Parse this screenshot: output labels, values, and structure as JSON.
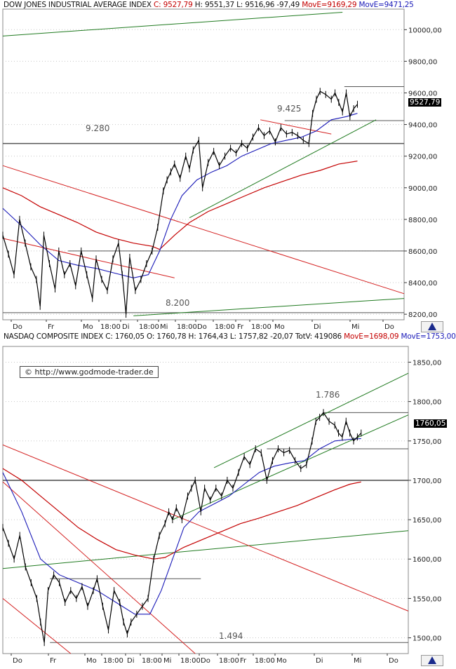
{
  "colors": {
    "price": "#000000",
    "ma_short": "#1a1ab8",
    "ma_long": "#c40000",
    "trend_green": "#1f7a1f",
    "trend_red": "#d42020",
    "level": "#555555",
    "grid": "#c8c8c8"
  },
  "nav_icon": "chart-navigator-icon",
  "chart_data": [
    {
      "type": "line",
      "header": {
        "name": "DOW JONES INDUSTRIAL AVERAGE INDEX",
        "close": "C: 9527,79",
        "high": "H: 9551,37",
        "low": "L: 9516,96",
        "change": "-97,49",
        "ma_long": "MovE=9169,29",
        "ma_short": "MovE=9471,25"
      },
      "last_value_label": "9527,79",
      "annotations": [
        "9.425",
        "9.280",
        "8.200"
      ],
      "x_tick_labels": [
        "Do",
        "Fr",
        "Mo",
        "18:00",
        "Di",
        "18:00",
        "Mi",
        "18:00",
        "Do",
        "18:00",
        "Fr",
        "18:00",
        "Mo",
        "Di",
        "Mi",
        "Do"
      ],
      "y_tick_labels": [
        "10000,00",
        "9800,00",
        "9600,00",
        "9400,00",
        "9200,00",
        "9000,00",
        "8800,00",
        "8600,00",
        "8400,00",
        "8200,00"
      ],
      "ylim": [
        8165,
        10130
      ],
      "y_ticks": [
        10000,
        9800,
        9600,
        9400,
        9200,
        9000,
        8800,
        8600,
        8400,
        8200
      ],
      "grid": "horizontal dotted",
      "levels": [
        9280,
        8600,
        8210,
        9425,
        9640
      ],
      "points": [
        [
          0,
          8700
        ],
        [
          3,
          8580
        ],
        [
          6,
          8450
        ],
        [
          9,
          8800
        ],
        [
          12,
          8650
        ],
        [
          15,
          8500
        ],
        [
          18,
          8420
        ],
        [
          20,
          8250
        ],
        [
          22,
          8700
        ],
        [
          25,
          8520
        ],
        [
          28,
          8360
        ],
        [
          30,
          8600
        ],
        [
          33,
          8450
        ],
        [
          36,
          8520
        ],
        [
          39,
          8380
        ],
        [
          42,
          8600
        ],
        [
          45,
          8450
        ],
        [
          48,
          8300
        ],
        [
          50,
          8550
        ],
        [
          53,
          8420
        ],
        [
          56,
          8350
        ],
        [
          59,
          8550
        ],
        [
          62,
          8650
        ],
        [
          64,
          8450
        ],
        [
          66,
          8200
        ],
        [
          68,
          8560
        ],
        [
          71,
          8350
        ],
        [
          74,
          8420
        ],
        [
          77,
          8520
        ],
        [
          80,
          8600
        ],
        [
          83,
          8750
        ],
        [
          86,
          8980
        ],
        [
          88,
          9050
        ],
        [
          90,
          9100
        ],
        [
          92,
          9150
        ],
        [
          95,
          9060
        ],
        [
          98,
          9200
        ],
        [
          100,
          9120
        ],
        [
          102,
          9240
        ],
        [
          105,
          9300
        ],
        [
          107,
          9000
        ],
        [
          110,
          9160
        ],
        [
          113,
          9230
        ],
        [
          116,
          9140
        ],
        [
          119,
          9200
        ],
        [
          122,
          9250
        ],
        [
          125,
          9220
        ],
        [
          128,
          9280
        ],
        [
          131,
          9250
        ],
        [
          134,
          9320
        ],
        [
          137,
          9380
        ],
        [
          140,
          9330
        ],
        [
          143,
          9360
        ],
        [
          146,
          9290
        ],
        [
          149,
          9380
        ],
        [
          152,
          9340
        ],
        [
          155,
          9350
        ],
        [
          158,
          9330
        ],
        [
          161,
          9300
        ],
        [
          164,
          9280
        ],
        [
          166,
          9470
        ],
        [
          168,
          9560
        ],
        [
          170,
          9610
        ],
        [
          173,
          9590
        ],
        [
          176,
          9560
        ],
        [
          178,
          9600
        ],
        [
          180,
          9540
        ],
        [
          182,
          9480
        ],
        [
          184,
          9600
        ],
        [
          186,
          9450
        ],
        [
          188,
          9500
        ],
        [
          190,
          9528
        ]
      ],
      "ma_short_points": [
        [
          0,
          8870
        ],
        [
          10,
          8760
        ],
        [
          20,
          8640
        ],
        [
          30,
          8540
        ],
        [
          40,
          8510
        ],
        [
          50,
          8490
        ],
        [
          60,
          8460
        ],
        [
          70,
          8430
        ],
        [
          78,
          8450
        ],
        [
          84,
          8600
        ],
        [
          90,
          8800
        ],
        [
          96,
          8950
        ],
        [
          104,
          9050
        ],
        [
          112,
          9100
        ],
        [
          120,
          9140
        ],
        [
          128,
          9200
        ],
        [
          136,
          9240
        ],
        [
          144,
          9280
        ],
        [
          152,
          9300
        ],
        [
          160,
          9320
        ],
        [
          168,
          9360
        ],
        [
          176,
          9430
        ],
        [
          184,
          9450
        ],
        [
          190,
          9471
        ]
      ],
      "ma_long_points": [
        [
          0,
          9000
        ],
        [
          10,
          8950
        ],
        [
          20,
          8880
        ],
        [
          30,
          8830
        ],
        [
          40,
          8780
        ],
        [
          50,
          8720
        ],
        [
          60,
          8680
        ],
        [
          70,
          8650
        ],
        [
          80,
          8630
        ],
        [
          84,
          8610
        ],
        [
          92,
          8700
        ],
        [
          100,
          8780
        ],
        [
          110,
          8850
        ],
        [
          120,
          8900
        ],
        [
          130,
          8950
        ],
        [
          140,
          9000
        ],
        [
          150,
          9040
        ],
        [
          160,
          9080
        ],
        [
          170,
          9110
        ],
        [
          180,
          9150
        ],
        [
          190,
          9169
        ]
      ],
      "trend_lines": [
        {
          "color": "green",
          "from": [
            0,
            9960
          ],
          "to": [
            182,
            10110
          ]
        },
        {
          "color": "green",
          "from": [
            100,
            8810
          ],
          "to": [
            200,
            9430
          ]
        },
        {
          "color": "green",
          "from": [
            70,
            8190
          ],
          "to": [
            215,
            8300
          ]
        },
        {
          "color": "red",
          "from": [
            0,
            9140
          ],
          "to": [
            215,
            8330
          ]
        },
        {
          "color": "red",
          "from": [
            0,
            8680
          ],
          "to": [
            92,
            8430
          ]
        },
        {
          "color": "red",
          "from": [
            138,
            9430
          ],
          "to": [
            176,
            9340
          ]
        }
      ],
      "series": [
        {
          "name": "DOW JONES INDUSTRIAL AVERAGE INDEX"
        },
        {
          "name": "MovE=9169,29"
        },
        {
          "name": "MovE=9471,25"
        }
      ]
    },
    {
      "type": "line",
      "header": {
        "name": "NASDAQ COMPOSITE INDEX",
        "close": "C: 1760,05",
        "open": "O: 1760,78",
        "high": "H: 1764,43",
        "low": "L: 1757,82",
        "change": "-20,07",
        "totv": "TotV: 419086",
        "ma_long": "MovE=1698,09",
        "ma_short": "MovE=1753,00"
      },
      "copyright": "© http://www.godmode-trader.de",
      "last_value_label": "1760,05",
      "annotations": [
        "1.786",
        "1.494"
      ],
      "x_tick_labels": [
        "Do",
        "Fr",
        "Mo",
        "18:00",
        "Di",
        "18:00",
        "Mi",
        "18:00",
        "Do",
        "18:00",
        "Fr",
        "18:00",
        "Mo",
        "Di",
        "Mi",
        "Do"
      ],
      "y_tick_labels": [
        "1850,00",
        "1800,00",
        "1750,00",
        "1700,00",
        "1650,00",
        "1600,00",
        "1550,00",
        "1500,00"
      ],
      "ylim": [
        1480,
        1870
      ],
      "y_ticks": [
        1850,
        1800,
        1750,
        1700,
        1650,
        1600,
        1550,
        1500
      ],
      "grid": "horizontal dotted",
      "levels": [
        1700,
        1740,
        1786,
        1575,
        1494
      ],
      "points": [
        [
          0,
          1640
        ],
        [
          3,
          1620
        ],
        [
          6,
          1600
        ],
        [
          9,
          1630
        ],
        [
          12,
          1590
        ],
        [
          15,
          1570
        ],
        [
          18,
          1550
        ],
        [
          20,
          1520
        ],
        [
          22,
          1494
        ],
        [
          24,
          1560
        ],
        [
          27,
          1580
        ],
        [
          30,
          1570
        ],
        [
          33,
          1545
        ],
        [
          36,
          1560
        ],
        [
          39,
          1550
        ],
        [
          42,
          1565
        ],
        [
          45,
          1540
        ],
        [
          48,
          1560
        ],
        [
          50,
          1575
        ],
        [
          53,
          1540
        ],
        [
          56,
          1510
        ],
        [
          59,
          1560
        ],
        [
          62,
          1545
        ],
        [
          64,
          1520
        ],
        [
          66,
          1505
        ],
        [
          68,
          1520
        ],
        [
          71,
          1530
        ],
        [
          74,
          1540
        ],
        [
          77,
          1550
        ],
        [
          80,
          1600
        ],
        [
          83,
          1630
        ],
        [
          86,
          1645
        ],
        [
          88,
          1660
        ],
        [
          90,
          1650
        ],
        [
          92,
          1665
        ],
        [
          95,
          1650
        ],
        [
          98,
          1680
        ],
        [
          100,
          1690
        ],
        [
          102,
          1700
        ],
        [
          105,
          1660
        ],
        [
          107,
          1690
        ],
        [
          110,
          1675
        ],
        [
          113,
          1690
        ],
        [
          116,
          1680
        ],
        [
          119,
          1700
        ],
        [
          122,
          1690
        ],
        [
          125,
          1710
        ],
        [
          128,
          1730
        ],
        [
          131,
          1720
        ],
        [
          134,
          1740
        ],
        [
          137,
          1735
        ],
        [
          140,
          1700
        ],
        [
          143,
          1725
        ],
        [
          146,
          1740
        ],
        [
          149,
          1735
        ],
        [
          152,
          1738
        ],
        [
          155,
          1725
        ],
        [
          158,
          1715
        ],
        [
          161,
          1720
        ],
        [
          164,
          1750
        ],
        [
          166,
          1775
        ],
        [
          168,
          1780
        ],
        [
          170,
          1786
        ],
        [
          173,
          1775
        ],
        [
          176,
          1770
        ],
        [
          178,
          1760
        ],
        [
          180,
          1755
        ],
        [
          182,
          1775
        ],
        [
          184,
          1760
        ],
        [
          186,
          1750
        ],
        [
          188,
          1755
        ],
        [
          190,
          1760
        ]
      ],
      "ma_short_points": [
        [
          0,
          1710
        ],
        [
          10,
          1660
        ],
        [
          20,
          1600
        ],
        [
          30,
          1580
        ],
        [
          40,
          1570
        ],
        [
          50,
          1560
        ],
        [
          60,
          1545
        ],
        [
          70,
          1530
        ],
        [
          78,
          1530
        ],
        [
          84,
          1560
        ],
        [
          90,
          1600
        ],
        [
          96,
          1640
        ],
        [
          104,
          1660
        ],
        [
          112,
          1670
        ],
        [
          120,
          1680
        ],
        [
          128,
          1695
        ],
        [
          136,
          1710
        ],
        [
          144,
          1718
        ],
        [
          152,
          1722
        ],
        [
          160,
          1725
        ],
        [
          168,
          1740
        ],
        [
          176,
          1750
        ],
        [
          184,
          1752
        ],
        [
          190,
          1753
        ]
      ],
      "ma_long_points": [
        [
          0,
          1715
        ],
        [
          10,
          1700
        ],
        [
          20,
          1680
        ],
        [
          30,
          1660
        ],
        [
          40,
          1640
        ],
        [
          50,
          1625
        ],
        [
          60,
          1612
        ],
        [
          70,
          1605
        ],
        [
          80,
          1600
        ],
        [
          86,
          1602
        ],
        [
          96,
          1615
        ],
        [
          106,
          1625
        ],
        [
          116,
          1635
        ],
        [
          126,
          1645
        ],
        [
          136,
          1652
        ],
        [
          146,
          1660
        ],
        [
          156,
          1668
        ],
        [
          166,
          1678
        ],
        [
          176,
          1688
        ],
        [
          184,
          1695
        ],
        [
          190,
          1698
        ]
      ],
      "trend_lines": [
        {
          "color": "green",
          "from": [
            112,
            1716
          ],
          "to": [
            215,
            1836
          ]
        },
        {
          "color": "green",
          "from": [
            90,
            1650
          ],
          "to": [
            215,
            1783
          ]
        },
        {
          "color": "green",
          "from": [
            0,
            1588
          ],
          "to": [
            215,
            1636
          ]
        },
        {
          "color": "red",
          "from": [
            0,
            1745
          ],
          "to": [
            215,
            1534
          ]
        },
        {
          "color": "red",
          "from": [
            0,
            1698
          ],
          "to": [
            102,
            1480
          ]
        },
        {
          "color": "red",
          "from": [
            0,
            1550
          ],
          "to": [
            36,
            1480
          ]
        }
      ],
      "series": [
        {
          "name": "NASDAQ COMPOSITE INDEX"
        },
        {
          "name": "MovE=1698,09"
        },
        {
          "name": "MovE=1753,00"
        }
      ]
    }
  ]
}
